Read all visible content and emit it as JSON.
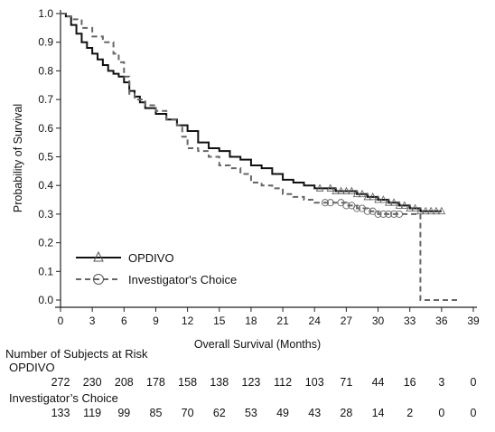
{
  "chart_data": {
    "type": "line",
    "subtype": "kaplan-meier",
    "title": "",
    "xlabel": "Overall Survival (Months)",
    "ylabel": "Probability of Survival",
    "xlim": [
      0,
      39
    ],
    "ylim": [
      0.0,
      1.0
    ],
    "xticks": [
      0,
      3,
      6,
      9,
      12,
      15,
      18,
      21,
      24,
      27,
      30,
      33,
      36,
      39
    ],
    "yticks": [
      0.0,
      0.1,
      0.2,
      0.3,
      0.4,
      0.5,
      0.6,
      0.7,
      0.8,
      0.9,
      1.0
    ],
    "grid": false,
    "legend_position": "bottom-left",
    "series": [
      {
        "name": "OPDIVO",
        "line_style": "solid",
        "color": "#111111",
        "marker": "triangle",
        "x": [
          0,
          0.5,
          1,
          1.5,
          2,
          2.5,
          3,
          3.5,
          4,
          4.5,
          5,
          5.5,
          6,
          6.5,
          7,
          7.5,
          8,
          9,
          10,
          11,
          12,
          13,
          14,
          15,
          16,
          17,
          18,
          19,
          20,
          21,
          22,
          23,
          24,
          25,
          26,
          27,
          28,
          29,
          30,
          31,
          32,
          33,
          34,
          35,
          36
        ],
        "y": [
          1.0,
          0.99,
          0.96,
          0.93,
          0.9,
          0.88,
          0.86,
          0.84,
          0.82,
          0.8,
          0.79,
          0.78,
          0.76,
          0.73,
          0.71,
          0.69,
          0.67,
          0.65,
          0.63,
          0.61,
          0.59,
          0.55,
          0.53,
          0.52,
          0.5,
          0.49,
          0.47,
          0.46,
          0.44,
          0.42,
          0.41,
          0.4,
          0.39,
          0.39,
          0.38,
          0.38,
          0.37,
          0.36,
          0.35,
          0.34,
          0.33,
          0.32,
          0.31,
          0.31,
          0.31
        ],
        "censor_x": [
          24.5,
          25.5,
          26,
          26.5,
          27,
          27.5,
          28,
          28.5,
          29,
          29.5,
          30,
          30.5,
          31,
          31.5,
          32,
          32.5,
          33,
          33.5,
          34,
          34.5,
          35,
          35.5,
          36
        ]
      },
      {
        "name": "Investigator's Choice",
        "line_style": "dashed",
        "color": "#666666",
        "marker": "circle",
        "x": [
          0,
          0.5,
          1,
          2,
          3,
          4,
          5,
          5.5,
          6,
          6.5,
          7,
          8,
          9,
          10,
          11,
          11.5,
          12,
          13,
          14,
          15,
          16,
          17,
          18,
          19,
          20,
          21,
          22,
          23,
          24,
          25,
          27,
          28,
          29,
          30,
          31,
          32,
          33,
          33.8,
          34,
          35,
          36,
          37.5
        ],
        "y": [
          1.0,
          0.99,
          0.98,
          0.95,
          0.92,
          0.9,
          0.86,
          0.83,
          0.78,
          0.72,
          0.7,
          0.68,
          0.66,
          0.63,
          0.61,
          0.57,
          0.53,
          0.52,
          0.5,
          0.47,
          0.46,
          0.44,
          0.41,
          0.4,
          0.39,
          0.37,
          0.36,
          0.35,
          0.34,
          0.34,
          0.33,
          0.32,
          0.31,
          0.3,
          0.3,
          0.3,
          0.3,
          0.3,
          0.0,
          0.0,
          0.0,
          0.0
        ],
        "censor_x": [
          25,
          25.5,
          26.5,
          27,
          27.5,
          28,
          28.5,
          29,
          29.5,
          30,
          30.5,
          31,
          31.5,
          32
        ]
      }
    ],
    "risk_table": {
      "title": "Number of Subjects at Risk",
      "timepoints": [
        0,
        3,
        6,
        9,
        12,
        15,
        18,
        21,
        24,
        27,
        30,
        33,
        36,
        39
      ],
      "rows": [
        {
          "name": "OPDIVO",
          "values": [
            "272",
            "230",
            "208",
            "178",
            "158",
            "138",
            "123",
            "112",
            "103",
            "71",
            "44",
            "16",
            "3",
            "0"
          ]
        },
        {
          "name": "Investigator’s Choice",
          "values": [
            "133",
            "119",
            "99",
            "85",
            "70",
            "62",
            "53",
            "49",
            "43",
            "28",
            "14",
            "2",
            "0",
            "0"
          ]
        }
      ]
    }
  }
}
